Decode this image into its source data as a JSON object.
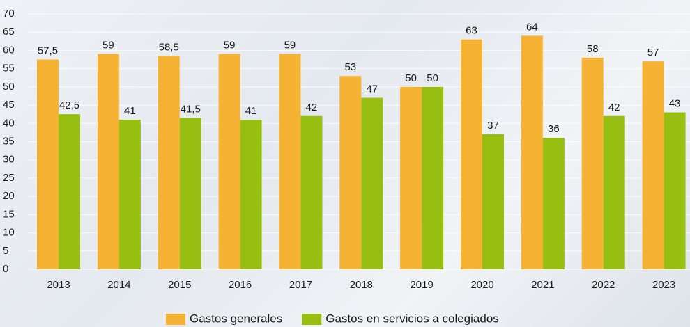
{
  "chart_data": {
    "type": "bar",
    "categories": [
      "2013",
      "2014",
      "2015",
      "2016",
      "2017",
      "2018",
      "2019",
      "2020",
      "2021",
      "2022",
      "2023"
    ],
    "series": [
      {
        "name": "Gastos generales",
        "color": "#f6b233",
        "values": [
          57.5,
          59,
          58.5,
          59,
          59,
          53,
          50,
          63,
          64,
          58,
          57
        ],
        "value_labels": [
          "57,5",
          "59",
          "58,5",
          "59",
          "59",
          "53",
          "50",
          "63",
          "64",
          "58",
          "57"
        ]
      },
      {
        "name": "Gastos en servicios a colegiados",
        "color": "#97bf12",
        "values": [
          42.5,
          41,
          41.5,
          41,
          42,
          47,
          50,
          37,
          36,
          42,
          43
        ],
        "value_labels": [
          "42,5",
          "41",
          "41,5",
          "41",
          "42",
          "47",
          "50",
          "37",
          "36",
          "42",
          "43"
        ]
      }
    ],
    "ylim": [
      0,
      70
    ],
    "yticks": [
      0,
      5,
      10,
      15,
      20,
      25,
      30,
      35,
      40,
      45,
      50,
      55,
      60,
      65,
      70
    ],
    "grid": true,
    "legend": "bottom"
  }
}
